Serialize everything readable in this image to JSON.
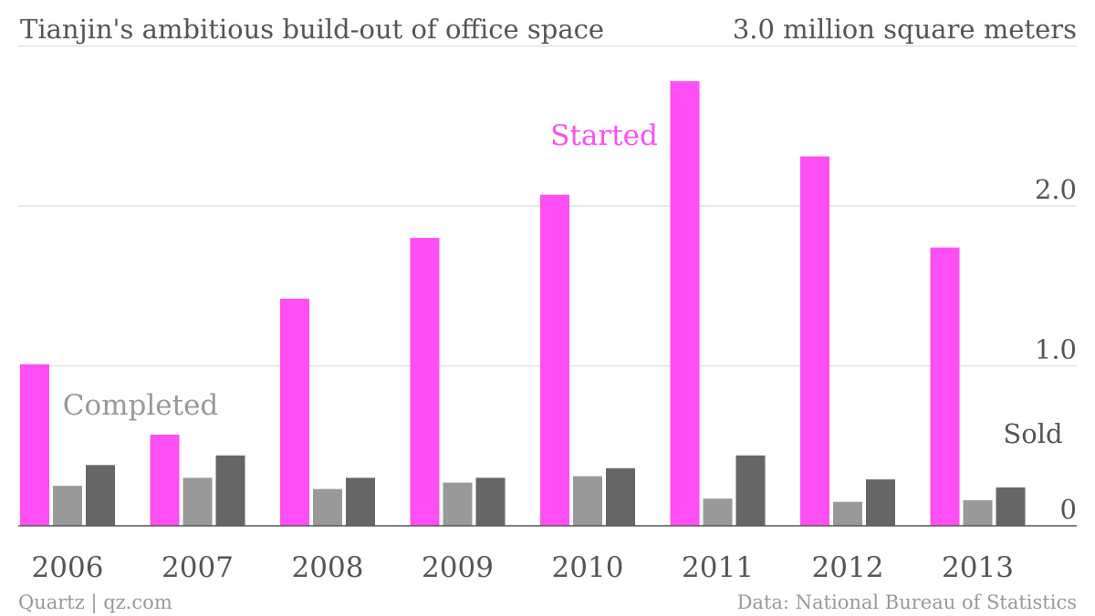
{
  "chart_data": {
    "type": "bar",
    "title": "Tianjin's ambitious build-out of office space",
    "unit_label": "3.0 million square meters",
    "categories": [
      "2006",
      "2007",
      "2008",
      "2009",
      "2010",
      "2011",
      "2012",
      "2013"
    ],
    "series": [
      {
        "name": "Started",
        "color": "#ff4ef3",
        "values": [
          1.01,
          0.57,
          1.42,
          1.8,
          2.07,
          2.78,
          2.31,
          1.74
        ]
      },
      {
        "name": "Completed",
        "color": "#999999",
        "values": [
          0.25,
          0.3,
          0.23,
          0.27,
          0.31,
          0.17,
          0.15,
          0.16
        ]
      },
      {
        "name": "Sold",
        "color": "#666666",
        "values": [
          0.38,
          0.44,
          0.3,
          0.3,
          0.36,
          0.44,
          0.29,
          0.24
        ]
      }
    ],
    "y_ticks": [
      {
        "value": 0,
        "label": "0"
      },
      {
        "value": 1,
        "label": "1.0"
      },
      {
        "value": 2,
        "label": "2.0"
      },
      {
        "value": 3,
        "label": ""
      }
    ],
    "ylim": [
      0,
      3.0
    ],
    "grid": true,
    "axis_side": "right",
    "legend": "inline labels"
  },
  "footer": {
    "source_left": "Quartz | qz.com",
    "source_right": "Data: National Bureau of Statistics"
  }
}
